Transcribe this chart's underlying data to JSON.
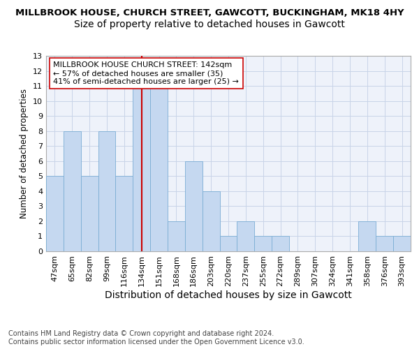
{
  "title_line1": "MILLBROOK HOUSE, CHURCH STREET, GAWCOTT, BUCKINGHAM, MK18 4HY",
  "title_line2": "Size of property relative to detached houses in Gawcott",
  "xlabel": "Distribution of detached houses by size in Gawcott",
  "ylabel": "Number of detached properties",
  "categories": [
    "47sqm",
    "65sqm",
    "82sqm",
    "99sqm",
    "116sqm",
    "134sqm",
    "151sqm",
    "168sqm",
    "186sqm",
    "203sqm",
    "220sqm",
    "237sqm",
    "255sqm",
    "272sqm",
    "289sqm",
    "307sqm",
    "324sqm",
    "341sqm",
    "358sqm",
    "376sqm",
    "393sqm"
  ],
  "values": [
    5,
    8,
    5,
    8,
    5,
    11,
    11,
    2,
    6,
    4,
    1,
    2,
    1,
    1,
    0,
    0,
    0,
    0,
    2,
    1,
    1
  ],
  "bar_color": "#c5d8f0",
  "bar_edge_color": "#7aadd4",
  "vline_x_idx": 5,
  "vline_color": "#cc0000",
  "annotation_text": "MILLBROOK HOUSE CHURCH STREET: 142sqm\n← 57% of detached houses are smaller (35)\n41% of semi-detached houses are larger (25) →",
  "annotation_box_color": "#ffffff",
  "annotation_box_edge": "#cc0000",
  "ylim": [
    0,
    13
  ],
  "yticks": [
    0,
    1,
    2,
    3,
    4,
    5,
    6,
    7,
    8,
    9,
    10,
    11,
    12,
    13
  ],
  "footer": "Contains HM Land Registry data © Crown copyright and database right 2024.\nContains public sector information licensed under the Open Government Licence v3.0.",
  "plot_bg_color": "#eef2fa",
  "grid_color": "#c8d4e8",
  "title1_fontsize": 9.5,
  "title2_fontsize": 10,
  "xlabel_fontsize": 10,
  "ylabel_fontsize": 8.5,
  "tick_fontsize": 8,
  "footer_fontsize": 7,
  "ann_fontsize": 8
}
